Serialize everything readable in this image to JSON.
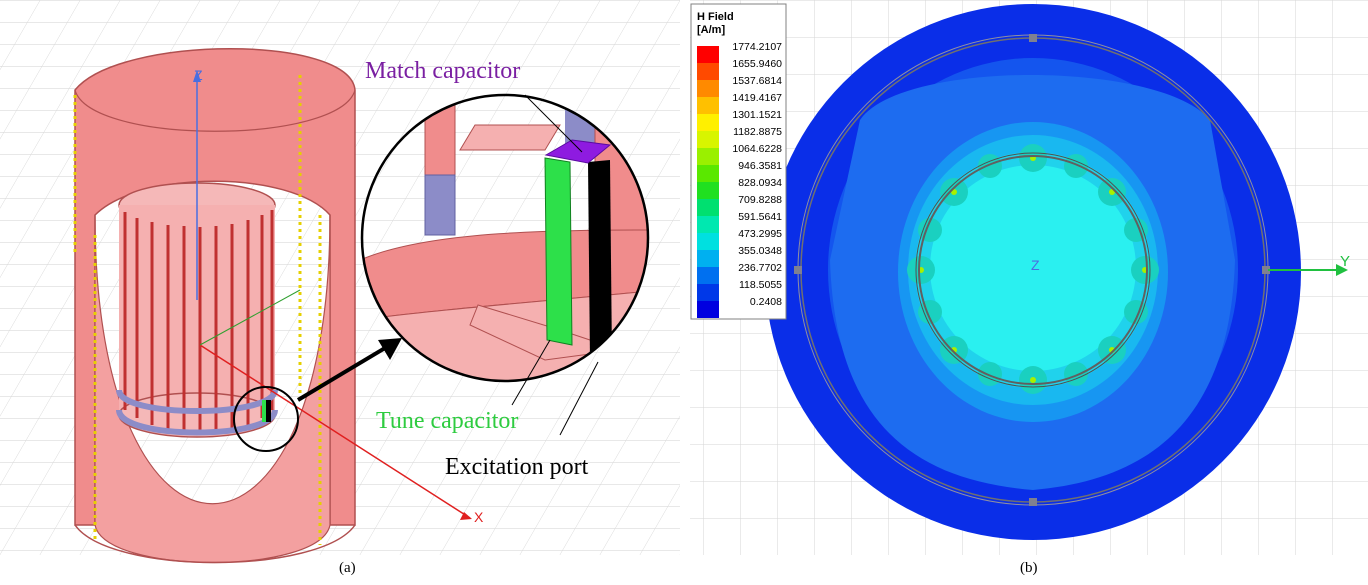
{
  "panel_a": {
    "caption": "(a)",
    "axis_z": "Z",
    "axis_x": "X",
    "label_match": "Match capacitor",
    "label_tune": "Tune capacitor",
    "label_port": "Excitation port",
    "colors": {
      "shield": "#f08c8c",
      "shield_edge": "#b05050",
      "end_ring": "#8c8cc8",
      "tune": "#2de04a",
      "match": "#8e1be0",
      "port": "#000000",
      "match_text": "#7a1fa2",
      "tune_text": "#2ecc40"
    }
  },
  "panel_b": {
    "caption": "(b)",
    "axis_z": "Z",
    "axis_y": "Y",
    "legend_title_1": "H Field",
    "legend_title_2": "[A/m]",
    "legend_values": [
      "1774.2107",
      "1655.9460",
      "1537.6814",
      "1419.4167",
      "1301.1521",
      "1182.8875",
      "1064.6228",
      "946.3581",
      "828.0934",
      "709.8288",
      "591.5641",
      "473.2995",
      "355.0348",
      "236.7702",
      "118.5055",
      "0.2408"
    ],
    "legend_colors": [
      "#ff0000",
      "#ff4a00",
      "#ff8a00",
      "#ffc000",
      "#fff000",
      "#d8f500",
      "#9af000",
      "#5ae800",
      "#20e020",
      "#00e070",
      "#00e8b0",
      "#00e0e0",
      "#00b0f0",
      "#0070f0",
      "#0038e8",
      "#0000e0"
    ]
  }
}
